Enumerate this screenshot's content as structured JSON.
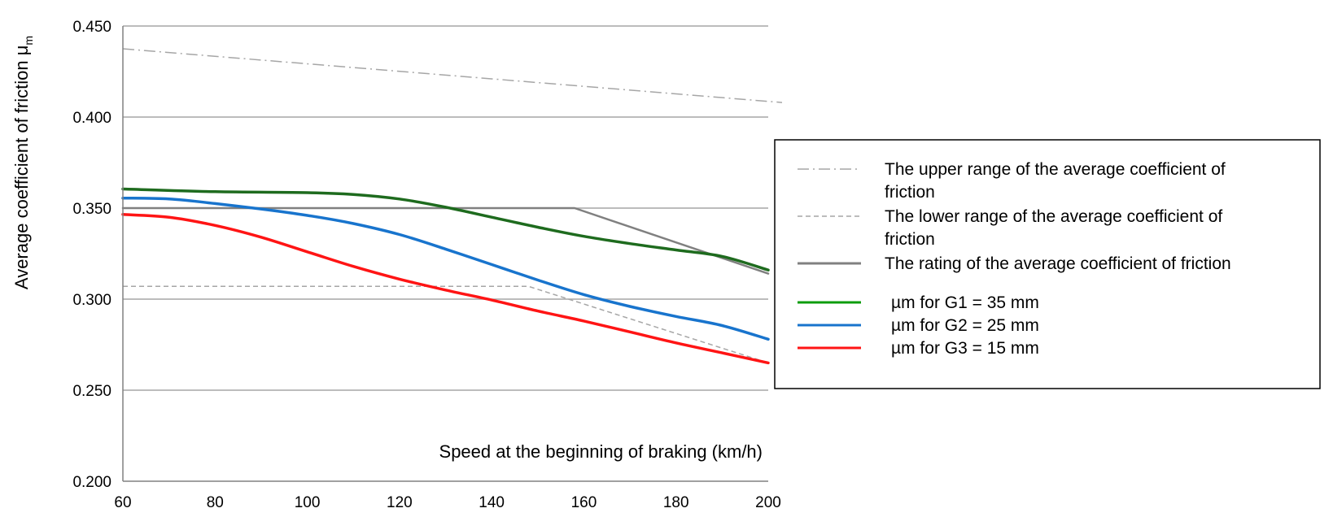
{
  "chart_data": {
    "type": "line",
    "title": "",
    "xlabel": "Speed at the beginning of braking (km/h)",
    "ylabel_main": "Average coefficient of friction μ",
    "ylabel_sub": "m",
    "xlim": [
      60,
      200
    ],
    "ylim": [
      0.2,
      0.45
    ],
    "x_ticks": [
      60,
      80,
      100,
      120,
      140,
      160,
      180,
      200
    ],
    "x_tick_labels": [
      "60",
      "80",
      "100",
      "120",
      "140",
      "160",
      "180",
      "200"
    ],
    "y_ticks": [
      0.2,
      0.25,
      0.3,
      0.35,
      0.4,
      0.45
    ],
    "y_tick_labels": [
      "0.200",
      "0.250",
      "0.300",
      "0.350",
      "0.400",
      "0.450"
    ],
    "grid": "horizontal",
    "legend_position": "right",
    "series": [
      {
        "name": "The upper range of the average coefficient of friction",
        "legend_lines": [
          "The upper range of the average coefficient of",
          "friction"
        ],
        "color": "#A6A6A6",
        "style": "dashdot",
        "x": [
          60,
          203
        ],
        "y": [
          0.4375,
          0.408
        ]
      },
      {
        "name": "The lower range of the average coefficient of friction",
        "legend_lines": [
          "The lower range of the average coefficient of",
          "friction"
        ],
        "color": "#A6A6A6",
        "style": "dashed",
        "x": [
          60,
          148,
          200
        ],
        "y": [
          0.307,
          0.307,
          0.265
        ]
      },
      {
        "name": "The rating of the average coefficient of friction",
        "legend_lines": [
          "The rating of the average coefficient of friction"
        ],
        "color": "#808080",
        "style": "solid",
        "x": [
          60,
          158,
          200
        ],
        "y": [
          0.35,
          0.35,
          0.314
        ]
      },
      {
        "name": "µm for G1 = 35 mm",
        "legend_lines": [
          "µm for G1 = 35 mm"
        ],
        "color": "#1E6B1E",
        "legend_color": "#0D9C0D",
        "style": "solid",
        "x": [
          60,
          80,
          100,
          110,
          120,
          130,
          140,
          150,
          160,
          170,
          180,
          190,
          200
        ],
        "y": [
          0.3605,
          0.359,
          0.3585,
          0.3575,
          0.355,
          0.3505,
          0.345,
          0.3395,
          0.3345,
          0.3305,
          0.327,
          0.3235,
          0.316
        ]
      },
      {
        "name": "µm for G2 = 25 mm",
        "legend_lines": [
          "µm for G2 = 25 mm"
        ],
        "color": "#1874CD",
        "style": "solid",
        "x": [
          60,
          70,
          80,
          90,
          100,
          110,
          120,
          130,
          140,
          150,
          160,
          170,
          180,
          190,
          200
        ],
        "y": [
          0.3555,
          0.355,
          0.3525,
          0.3495,
          0.346,
          0.3415,
          0.3355,
          0.3275,
          0.319,
          0.3105,
          0.3025,
          0.296,
          0.2905,
          0.2855,
          0.278
        ]
      },
      {
        "name": "µm for G3 = 15 mm",
        "legend_lines": [
          "µm for G3 = 15 mm"
        ],
        "color": "#FF1414",
        "style": "solid",
        "x": [
          60,
          70,
          80,
          90,
          100,
          110,
          120,
          130,
          140,
          150,
          160,
          170,
          180,
          190,
          200
        ],
        "y": [
          0.3465,
          0.345,
          0.3405,
          0.334,
          0.326,
          0.318,
          0.311,
          0.305,
          0.2995,
          0.2935,
          0.288,
          0.282,
          0.276,
          0.2705,
          0.265
        ]
      }
    ]
  }
}
